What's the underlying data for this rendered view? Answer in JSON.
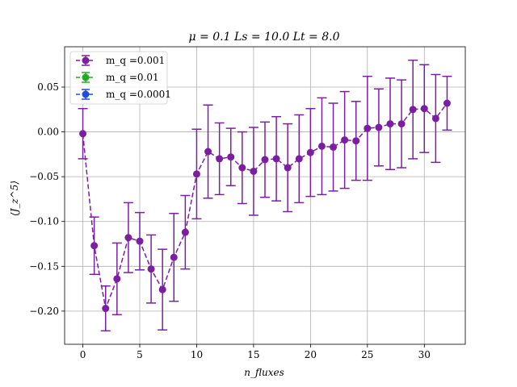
{
  "chart_data": {
    "type": "scatter",
    "title": "μ = 0.1 Ls = 10.0 Lt = 8.0",
    "xlabel": "n_fluxes",
    "ylabel": "⟨J_z^5⟩",
    "xlim": [
      -1.6,
      33.6
    ],
    "ylim": [
      -0.237,
      0.095
    ],
    "xticks": [
      0,
      5,
      10,
      15,
      20,
      25,
      30
    ],
    "xtick_labels": [
      "0",
      "5",
      "10",
      "15",
      "20",
      "25",
      "30"
    ],
    "yticks": [
      -0.2,
      -0.15,
      -0.1,
      -0.05,
      0.0,
      0.05
    ],
    "ytick_labels": [
      "−0.20",
      "−0.15",
      "−0.10",
      "−0.05",
      "0.00",
      "0.05"
    ],
    "grid": true,
    "legend_position": "top-left",
    "series": [
      {
        "name": "m_q =0.001",
        "color": "#7b1fa2",
        "x": [
          0,
          1,
          2,
          3,
          4,
          5,
          6,
          7,
          8,
          9,
          10,
          11,
          12,
          13,
          14,
          15,
          16,
          17,
          18,
          19,
          20,
          21,
          22,
          23,
          24,
          25,
          26,
          27,
          28,
          29,
          30,
          31,
          32
        ],
        "y": [
          -0.002,
          -0.127,
          -0.197,
          -0.164,
          -0.118,
          -0.122,
          -0.153,
          -0.176,
          -0.14,
          -0.112,
          -0.047,
          -0.022,
          -0.03,
          -0.028,
          -0.04,
          -0.044,
          -0.031,
          -0.03,
          -0.04,
          -0.03,
          -0.023,
          -0.016,
          -0.017,
          -0.009,
          -0.01,
          0.004,
          0.005,
          0.009,
          0.009,
          0.025,
          0.026,
          0.015,
          0.032
        ],
        "yerr": [
          0.028,
          0.032,
          0.025,
          0.04,
          0.039,
          0.032,
          0.038,
          0.045,
          0.049,
          0.041,
          0.05,
          0.052,
          0.04,
          0.032,
          0.04,
          0.049,
          0.042,
          0.047,
          0.049,
          0.049,
          0.049,
          0.054,
          0.049,
          0.054,
          0.044,
          0.058,
          0.043,
          0.051,
          0.049,
          0.055,
          0.049,
          0.049,
          0.03
        ]
      },
      {
        "name": "m_q =0.01",
        "color": "#22aa22",
        "x": [],
        "y": [],
        "yerr": []
      },
      {
        "name": "m_q =0.0001",
        "color": "#1f4fd8",
        "x": [],
        "y": [],
        "yerr": []
      }
    ]
  }
}
